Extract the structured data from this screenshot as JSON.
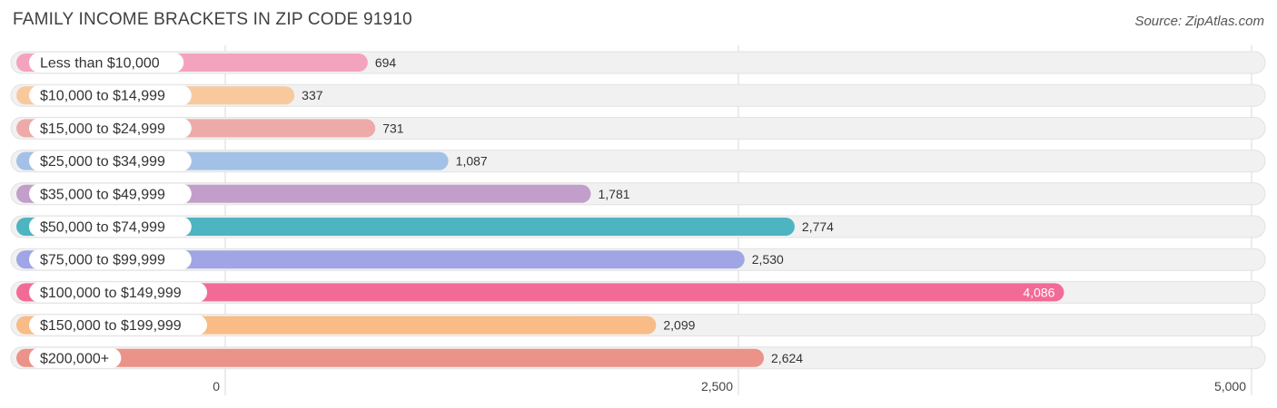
{
  "header": {
    "title": "FAMILY INCOME BRACKETS IN ZIP CODE 91910",
    "source": "Source: ZipAtlas.com"
  },
  "chart_data": {
    "type": "bar",
    "orientation": "horizontal",
    "title": "FAMILY INCOME BRACKETS IN ZIP CODE 91910",
    "xlabel": "",
    "ylabel": "",
    "categories": [
      "Less than $10,000",
      "$10,000 to $14,999",
      "$15,000 to $24,999",
      "$25,000 to $34,999",
      "$35,000 to $49,999",
      "$50,000 to $74,999",
      "$75,000 to $99,999",
      "$100,000 to $149,999",
      "$150,000 to $199,999",
      "$200,000+"
    ],
    "values": [
      694,
      337,
      731,
      1087,
      1781,
      2774,
      2530,
      4086,
      2099,
      2624
    ],
    "value_labels": [
      "694",
      "337",
      "731",
      "1,087",
      "1,781",
      "2,774",
      "2,530",
      "4,086",
      "2,099",
      "2,624"
    ],
    "colors": [
      "#f4a3bf",
      "#f9c99e",
      "#eeaaa8",
      "#a3c1e6",
      "#c29fca",
      "#4db4c2",
      "#9fa5e5",
      "#f26b97",
      "#f9bc86",
      "#eb9289"
    ],
    "xlim": [
      0,
      5000
    ],
    "ticks": [
      0,
      2500,
      5000
    ],
    "tick_labels": [
      "0",
      "2,500",
      "5,000"
    ],
    "grid": true,
    "legend": "none"
  }
}
